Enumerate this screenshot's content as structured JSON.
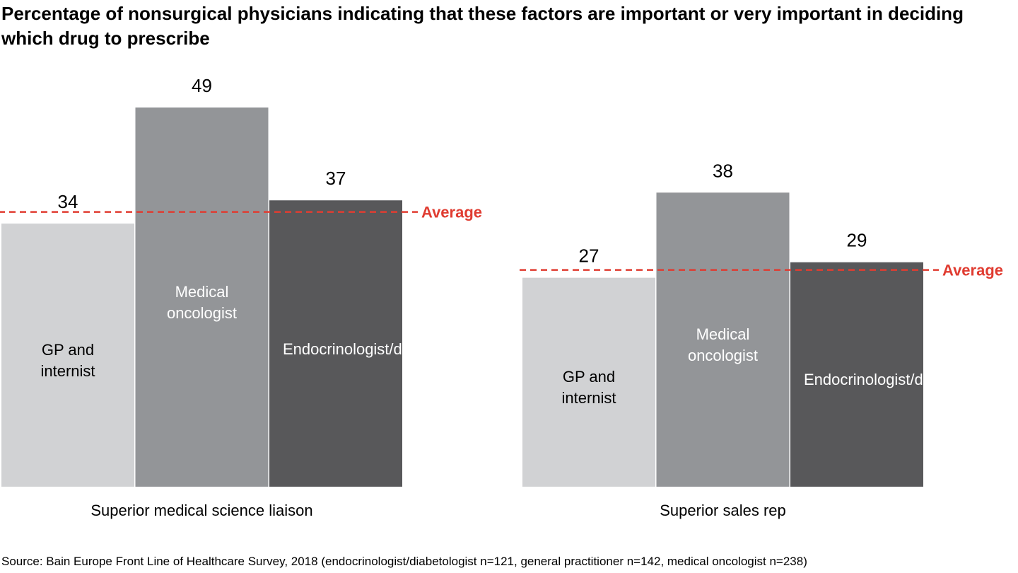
{
  "chart_data": {
    "type": "bar",
    "title": "Percentage of nonsurgical physicians indicating that these factors are important or very important in deciding which drug to prescribe",
    "categories": [
      "Superior medical science liaison",
      "Superior sales rep"
    ],
    "series": [
      {
        "name": "GP and internist",
        "color": "#d1d2d4",
        "label_color": "#000000",
        "values": [
          34,
          27
        ]
      },
      {
        "name": "Medical oncologist",
        "color": "#939598",
        "label_color": "#ffffff",
        "values": [
          49,
          38
        ]
      },
      {
        "name": "Endocrinologist/diabetologist",
        "color": "#58585a",
        "label_color": "#ffffff",
        "values": [
          37,
          29
        ]
      }
    ],
    "average": {
      "label": "Average",
      "color": "#e03c31",
      "values": [
        35.5,
        28
      ]
    },
    "source": "Source: Bain Europe Front Line of Healthcare Survey, 2018 (endocrinologist/diabetologist n=121, general practitioner n=142, medical oncologist n=238)"
  }
}
